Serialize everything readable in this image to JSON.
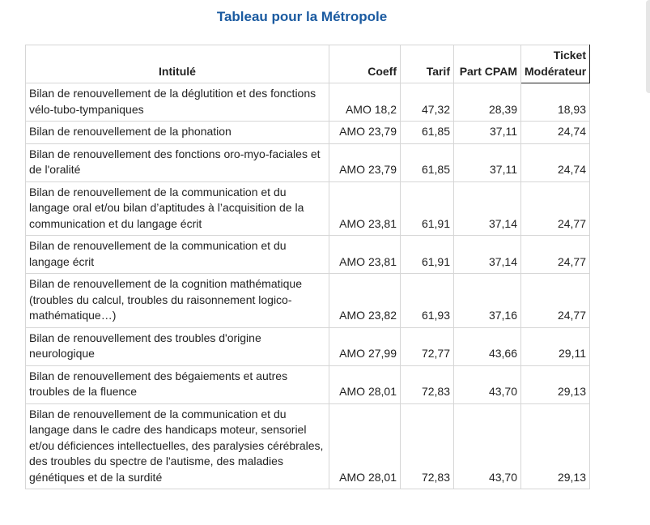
{
  "title": "Tableau pour la Métropole",
  "table": {
    "header": [
      "Intitulé",
      "Coeff",
      "Tarif",
      "Part CPAM",
      "Ticket Modérateur"
    ],
    "rows": [
      [
        "Bilan de renouvellement de la déglutition et des fonctions vélo-tubo-tympaniques",
        "AMO 18,2",
        "47,32",
        "28,39",
        "18,93"
      ],
      [
        "Bilan de renouvellement de la phonation",
        "AMO 23,79",
        "61,85",
        "37,11",
        "24,74"
      ],
      [
        "Bilan de renouvellement des fonctions oro-myo-faciales et de l'oralité",
        "AMO 23,79",
        "61,85",
        "37,11",
        "24,74"
      ],
      [
        "Bilan de renouvellement de la communication et du langage oral et/ou bilan d’aptitudes à l’acquisition de la communication et du langage écrit",
        "AMO 23,81",
        "61,91",
        "37,14",
        "24,77"
      ],
      [
        "Bilan de renouvellement de la communication et du langage écrit",
        "AMO 23,81",
        "61,91",
        "37,14",
        "24,77"
      ],
      [
        "Bilan de renouvellement de la cognition mathématique (troubles du calcul, troubles du raisonnement logico-mathématique…)",
        "AMO 23,82",
        "61,93",
        "37,16",
        "24,77"
      ],
      [
        "Bilan de renouvellement des troubles d'origine neurologique",
        "AMO 27,99",
        "72,77",
        "43,66",
        "29,11"
      ],
      [
        "Bilan de renouvellement des bégaiements et autres troubles de la fluence",
        "AMO 28,01",
        "72,83",
        "43,70",
        "29,13"
      ],
      [
        "Bilan de renouvellement de la communication et du langage dans le cadre des handicaps moteur, sensoriel et/ou déficiences intellectuelles, des paralysies cérébrales, des troubles du spectre de l'autisme, des maladies génétiques et de la surdité",
        "AMO 28,01",
        "72,83",
        "43,70",
        "29,13"
      ]
    ]
  }
}
